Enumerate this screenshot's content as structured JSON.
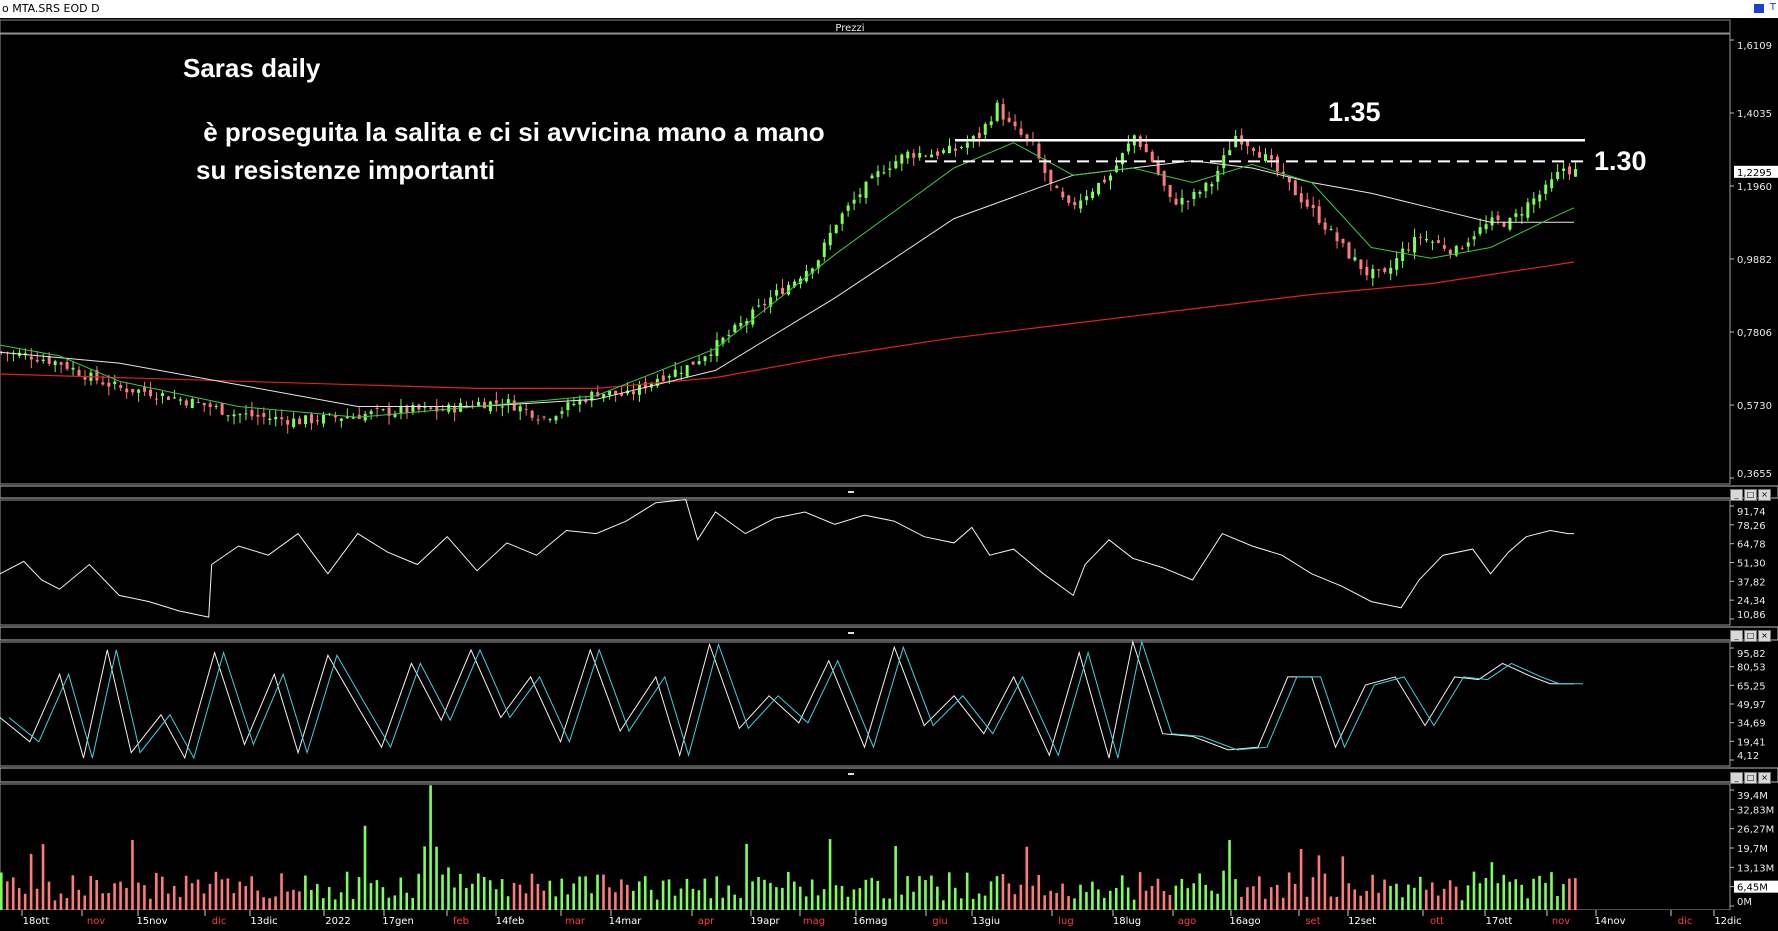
{
  "window": {
    "title": "o MTA.SRS EOD D",
    "corner_label": "T"
  },
  "price_panel": {
    "header": "Prezzi",
    "y_ticks": [
      "1,6109",
      "1,4035",
      "1,1960",
      "0,9882",
      "0,7806",
      "0,5730",
      "0,3655"
    ],
    "last_price_label": "1,2295"
  },
  "rsi_panel": {
    "y_ticks": [
      "91,74",
      "78,26",
      "64,78",
      "51,30",
      "37,82",
      "24,34",
      "10,86"
    ]
  },
  "stoch_panel": {
    "y_ticks": [
      "95,82",
      "80,53",
      "65,25",
      "49,97",
      "34,69",
      "19,41",
      "4,12"
    ]
  },
  "volume_panel": {
    "y_ticks": [
      "39,4M",
      "32,83M",
      "26,27M",
      "19,7M",
      "13,13M",
      "6,45M",
      "0M"
    ],
    "last_volume_label": "6,45M"
  },
  "annotations": {
    "title": "Saras daily",
    "line1": " è proseguita la salita e ci si avvicina mano a mano",
    "line2": "su resistenze importanti",
    "level_135": "1.35",
    "level_130": "1.30"
  },
  "x_axis": [
    {
      "label": "18ott",
      "color": "#ffffff"
    },
    {
      "label": "nov",
      "color": "#ff3b3b"
    },
    {
      "label": "15nov",
      "color": "#ffffff"
    },
    {
      "label": "dic",
      "color": "#ff3b3b"
    },
    {
      "label": "13dic",
      "color": "#ffffff"
    },
    {
      "label": "2022",
      "color": "#ffffff"
    },
    {
      "label": "17gen",
      "color": "#ffffff"
    },
    {
      "label": "feb",
      "color": "#ff3b3b"
    },
    {
      "label": "14feb",
      "color": "#ffffff"
    },
    {
      "label": "mar",
      "color": "#ff3b3b"
    },
    {
      "label": "14mar",
      "color": "#ffffff"
    },
    {
      "label": "apr",
      "color": "#ff3b3b"
    },
    {
      "label": "19apr",
      "color": "#ffffff"
    },
    {
      "label": "mag",
      "color": "#ff3b3b"
    },
    {
      "label": "16mag",
      "color": "#ffffff"
    },
    {
      "label": "giu",
      "color": "#ff3b3b"
    },
    {
      "label": "13giu",
      "color": "#ffffff"
    },
    {
      "label": "lug",
      "color": "#ff3b3b"
    },
    {
      "label": "18lug",
      "color": "#ffffff"
    },
    {
      "label": "ago",
      "color": "#ff3b3b"
    },
    {
      "label": "16ago",
      "color": "#ffffff"
    },
    {
      "label": "set",
      "color": "#ff3b3b"
    },
    {
      "label": "12set",
      "color": "#ffffff"
    },
    {
      "label": "ott",
      "color": "#ff3b3b"
    },
    {
      "label": "17ott",
      "color": "#ffffff"
    },
    {
      "label": "nov",
      "color": "#ff3b3b"
    },
    {
      "label": "14nov",
      "color": "#ffffff"
    },
    {
      "label": "dic",
      "color": "#ff3b3b"
    },
    {
      "label": "12dic",
      "color": "#ffffff"
    }
  ],
  "colors": {
    "background": "#000000",
    "up_candle": "#7dff5a",
    "down_candle": "#ff7a7a",
    "ma_short": "#3cc83c",
    "ma_medium": "#e6e6e6",
    "ma_long": "#e02020",
    "stoch_signal": "#3fd0e0"
  },
  "chart_data": {
    "type": "candlestick",
    "instrument": "MTA.SRS",
    "timeframe": "EOD daily",
    "y_range": [
      0.3655,
      1.6109
    ],
    "resistance_levels": [
      1.35,
      1.3
    ],
    "last_price": 1.2295,
    "close_path": [
      [
        0,
        0.73
      ],
      [
        10,
        0.72
      ],
      [
        20,
        0.7
      ],
      [
        30,
        0.66
      ],
      [
        40,
        0.63
      ],
      [
        50,
        0.62
      ],
      [
        60,
        0.6
      ],
      [
        70,
        0.58
      ],
      [
        78,
        0.56
      ],
      [
        88,
        0.55
      ],
      [
        100,
        0.54
      ],
      [
        112,
        0.55
      ],
      [
        124,
        0.56
      ],
      [
        136,
        0.57
      ],
      [
        148,
        0.57
      ],
      [
        160,
        0.59
      ],
      [
        170,
        0.59
      ],
      [
        182,
        0.55
      ],
      [
        190,
        0.58
      ],
      [
        200,
        0.62
      ],
      [
        210,
        0.61
      ],
      [
        220,
        0.66
      ],
      [
        230,
        0.69
      ],
      [
        240,
        0.75
      ],
      [
        250,
        0.82
      ],
      [
        258,
        0.88
      ],
      [
        266,
        0.93
      ],
      [
        274,
        0.99
      ],
      [
        280,
        1.09
      ],
      [
        288,
        1.17
      ],
      [
        296,
        1.24
      ],
      [
        304,
        1.28
      ],
      [
        312,
        1.28
      ],
      [
        320,
        1.29
      ],
      [
        328,
        1.33
      ],
      [
        334,
        1.41
      ],
      [
        338,
        1.36
      ],
      [
        346,
        1.3
      ],
      [
        352,
        1.19
      ],
      [
        358,
        1.13
      ],
      [
        364,
        1.17
      ],
      [
        372,
        1.22
      ],
      [
        380,
        1.33
      ],
      [
        386,
        1.26
      ],
      [
        392,
        1.15
      ],
      [
        398,
        1.15
      ],
      [
        406,
        1.2
      ],
      [
        414,
        1.33
      ],
      [
        420,
        1.3
      ],
      [
        426,
        1.25
      ],
      [
        432,
        1.19
      ],
      [
        440,
        1.12
      ],
      [
        446,
        1.06
      ],
      [
        452,
        1.0
      ],
      [
        458,
        0.95
      ],
      [
        464,
        0.94
      ],
      [
        470,
        1.01
      ],
      [
        476,
        1.05
      ],
      [
        482,
        1.03
      ],
      [
        488,
        1.01
      ],
      [
        494,
        1.06
      ],
      [
        500,
        1.09
      ],
      [
        506,
        1.09
      ],
      [
        512,
        1.14
      ],
      [
        518,
        1.18
      ],
      [
        524,
        1.24
      ],
      [
        528,
        1.23
      ]
    ],
    "ma_short_path": [
      [
        0,
        0.75
      ],
      [
        20,
        0.72
      ],
      [
        40,
        0.65
      ],
      [
        80,
        0.58
      ],
      [
        120,
        0.55
      ],
      [
        160,
        0.58
      ],
      [
        200,
        0.61
      ],
      [
        240,
        0.74
      ],
      [
        280,
        1.0
      ],
      [
        320,
        1.24
      ],
      [
        340,
        1.31
      ],
      [
        360,
        1.22
      ],
      [
        380,
        1.24
      ],
      [
        400,
        1.2
      ],
      [
        420,
        1.25
      ],
      [
        440,
        1.2
      ],
      [
        460,
        1.02
      ],
      [
        480,
        0.99
      ],
      [
        500,
        1.02
      ],
      [
        520,
        1.1
      ],
      [
        528,
        1.13
      ]
    ],
    "ma_medium_path": [
      [
        0,
        0.73
      ],
      [
        40,
        0.7
      ],
      [
        80,
        0.64
      ],
      [
        120,
        0.58
      ],
      [
        160,
        0.58
      ],
      [
        200,
        0.6
      ],
      [
        240,
        0.68
      ],
      [
        280,
        0.88
      ],
      [
        320,
        1.1
      ],
      [
        360,
        1.22
      ],
      [
        380,
        1.24
      ],
      [
        400,
        1.26
      ],
      [
        420,
        1.24
      ],
      [
        440,
        1.2
      ],
      [
        460,
        1.17
      ],
      [
        480,
        1.13
      ],
      [
        500,
        1.09
      ],
      [
        520,
        1.09
      ],
      [
        528,
        1.09
      ]
    ],
    "ma_long_path": [
      [
        0,
        0.67
      ],
      [
        40,
        0.66
      ],
      [
        80,
        0.65
      ],
      [
        120,
        0.64
      ],
      [
        160,
        0.63
      ],
      [
        200,
        0.63
      ],
      [
        240,
        0.66
      ],
      [
        280,
        0.72
      ],
      [
        320,
        0.77
      ],
      [
        360,
        0.81
      ],
      [
        400,
        0.85
      ],
      [
        440,
        0.89
      ],
      [
        480,
        0.92
      ],
      [
        528,
        0.98
      ]
    ],
    "rsi_range": [
      10.86,
      91.74
    ],
    "rsi_path": [
      [
        0,
        44
      ],
      [
        8,
        52
      ],
      [
        14,
        40
      ],
      [
        20,
        34
      ],
      [
        30,
        50
      ],
      [
        40,
        30
      ],
      [
        50,
        26
      ],
      [
        60,
        20
      ],
      [
        70,
        16
      ],
      [
        71,
        50
      ],
      [
        80,
        62
      ],
      [
        90,
        56
      ],
      [
        100,
        70
      ],
      [
        110,
        44
      ],
      [
        120,
        70
      ],
      [
        130,
        58
      ],
      [
        140,
        50
      ],
      [
        150,
        68
      ],
      [
        160,
        46
      ],
      [
        170,
        64
      ],
      [
        180,
        56
      ],
      [
        190,
        72
      ],
      [
        200,
        70
      ],
      [
        210,
        78
      ],
      [
        220,
        90
      ],
      [
        230,
        92
      ],
      [
        234,
        66
      ],
      [
        240,
        84
      ],
      [
        250,
        70
      ],
      [
        260,
        80
      ],
      [
        270,
        84
      ],
      [
        280,
        76
      ],
      [
        290,
        82
      ],
      [
        300,
        78
      ],
      [
        310,
        68
      ],
      [
        320,
        64
      ],
      [
        326,
        74
      ],
      [
        332,
        56
      ],
      [
        340,
        60
      ],
      [
        350,
        44
      ],
      [
        360,
        30
      ],
      [
        364,
        50
      ],
      [
        372,
        66
      ],
      [
        380,
        54
      ],
      [
        390,
        48
      ],
      [
        400,
        40
      ],
      [
        410,
        70
      ],
      [
        420,
        62
      ],
      [
        430,
        56
      ],
      [
        440,
        44
      ],
      [
        450,
        36
      ],
      [
        460,
        26
      ],
      [
        470,
        22
      ],
      [
        476,
        40
      ],
      [
        484,
        56
      ],
      [
        494,
        60
      ],
      [
        500,
        44
      ],
      [
        506,
        58
      ],
      [
        512,
        68
      ],
      [
        520,
        72
      ],
      [
        526,
        70
      ],
      [
        528,
        70
      ]
    ],
    "stoch_range": [
      4.12,
      95.82
    ],
    "stoch_k_path": [
      [
        0,
        40
      ],
      [
        10,
        22
      ],
      [
        20,
        72
      ],
      [
        28,
        10
      ],
      [
        36,
        90
      ],
      [
        44,
        14
      ],
      [
        54,
        42
      ],
      [
        62,
        10
      ],
      [
        72,
        88
      ],
      [
        82,
        20
      ],
      [
        92,
        72
      ],
      [
        100,
        14
      ],
      [
        110,
        86
      ],
      [
        120,
        48
      ],
      [
        128,
        18
      ],
      [
        138,
        80
      ],
      [
        148,
        38
      ],
      [
        158,
        90
      ],
      [
        168,
        40
      ],
      [
        178,
        70
      ],
      [
        188,
        22
      ],
      [
        198,
        90
      ],
      [
        208,
        30
      ],
      [
        220,
        70
      ],
      [
        228,
        12
      ],
      [
        238,
        94
      ],
      [
        248,
        32
      ],
      [
        258,
        56
      ],
      [
        268,
        36
      ],
      [
        278,
        82
      ],
      [
        290,
        18
      ],
      [
        300,
        92
      ],
      [
        310,
        34
      ],
      [
        320,
        56
      ],
      [
        330,
        28
      ],
      [
        340,
        70
      ],
      [
        352,
        12
      ],
      [
        362,
        88
      ],
      [
        372,
        10
      ],
      [
        380,
        96
      ],
      [
        390,
        28
      ],
      [
        400,
        26
      ],
      [
        412,
        16
      ],
      [
        422,
        18
      ],
      [
        432,
        70
      ],
      [
        440,
        70
      ],
      [
        448,
        18
      ],
      [
        458,
        64
      ],
      [
        468,
        70
      ],
      [
        478,
        34
      ],
      [
        488,
        70
      ],
      [
        496,
        68
      ],
      [
        504,
        80
      ],
      [
        514,
        70
      ],
      [
        520,
        65
      ],
      [
        528,
        65
      ]
    ],
    "volume_series_note": "daily volume bars colored by candle direction",
    "volume_range": [
      0,
      39.4
    ]
  }
}
